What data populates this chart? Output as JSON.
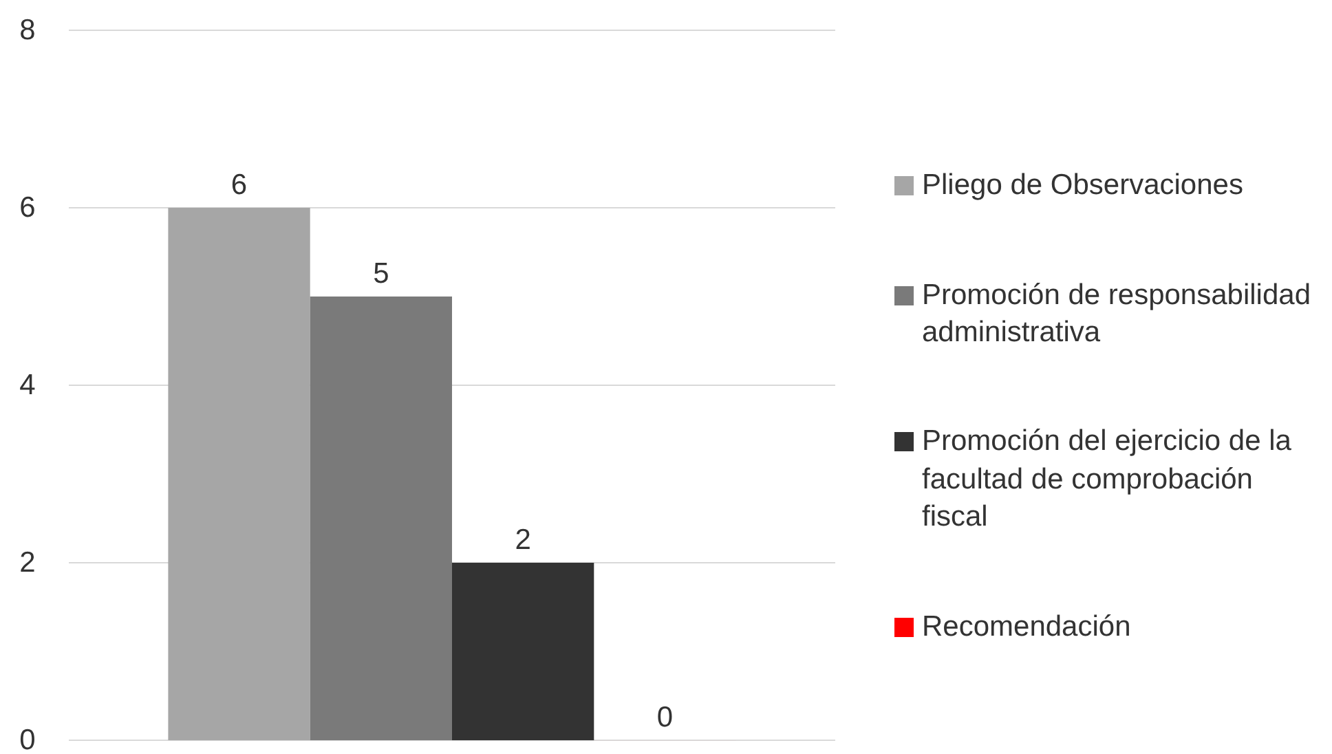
{
  "chart_data": {
    "type": "bar",
    "categories": [
      null
    ],
    "series": [
      {
        "name": "Pliego de Observaciones",
        "color": "#a6a6a6",
        "values": [
          6
        ]
      },
      {
        "name": "Promoción de responsabilidad administrativa",
        "color": "#7a7a7a",
        "values": [
          5
        ]
      },
      {
        "name": "Promoción del ejercicio de la facultad de comprobación fiscal",
        "color": "#333333",
        "values": [
          2
        ]
      },
      {
        "name": "Recomendación",
        "color": "#ff0000",
        "values": [
          0
        ]
      }
    ],
    "ylim": [
      0,
      8
    ],
    "yticks": [
      0,
      2,
      4,
      6,
      8
    ],
    "grid": "y",
    "legend": "right",
    "data_labels": true
  }
}
